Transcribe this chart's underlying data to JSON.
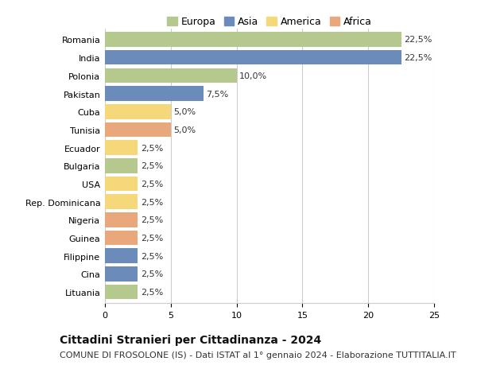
{
  "countries": [
    "Romania",
    "India",
    "Polonia",
    "Pakistan",
    "Cuba",
    "Tunisia",
    "Ecuador",
    "Bulgaria",
    "USA",
    "Rep. Dominicana",
    "Nigeria",
    "Guinea",
    "Filippine",
    "Cina",
    "Lituania"
  ],
  "values": [
    22.5,
    22.5,
    10.0,
    7.5,
    5.0,
    5.0,
    2.5,
    2.5,
    2.5,
    2.5,
    2.5,
    2.5,
    2.5,
    2.5,
    2.5
  ],
  "labels": [
    "22,5%",
    "22,5%",
    "10,0%",
    "7,5%",
    "5,0%",
    "5,0%",
    "2,5%",
    "2,5%",
    "2,5%",
    "2,5%",
    "2,5%",
    "2,5%",
    "2,5%",
    "2,5%",
    "2,5%"
  ],
  "colors": [
    "#b5c98e",
    "#6b8cba",
    "#b5c98e",
    "#6b8cba",
    "#f5d87a",
    "#e8a87c",
    "#f5d87a",
    "#b5c98e",
    "#f5d87a",
    "#f5d87a",
    "#e8a87c",
    "#e8a87c",
    "#6b8cba",
    "#6b8cba",
    "#b5c98e"
  ],
  "legend": [
    {
      "label": "Europa",
      "color": "#b5c98e"
    },
    {
      "label": "Asia",
      "color": "#6b8cba"
    },
    {
      "label": "America",
      "color": "#f5d87a"
    },
    {
      "label": "Africa",
      "color": "#e8a87c"
    }
  ],
  "xlim": [
    0,
    25
  ],
  "xticks": [
    0,
    5,
    10,
    15,
    20,
    25
  ],
  "title": "Cittadini Stranieri per Cittadinanza - 2024",
  "subtitle": "COMUNE DI FROSOLONE (IS) - Dati ISTAT al 1° gennaio 2024 - Elaborazione TUTTITALIA.IT",
  "bg_color": "#ffffff",
  "grid_color": "#cccccc",
  "bar_height": 0.82,
  "title_fontsize": 10,
  "subtitle_fontsize": 8,
  "label_fontsize": 8,
  "tick_fontsize": 8,
  "legend_fontsize": 9
}
